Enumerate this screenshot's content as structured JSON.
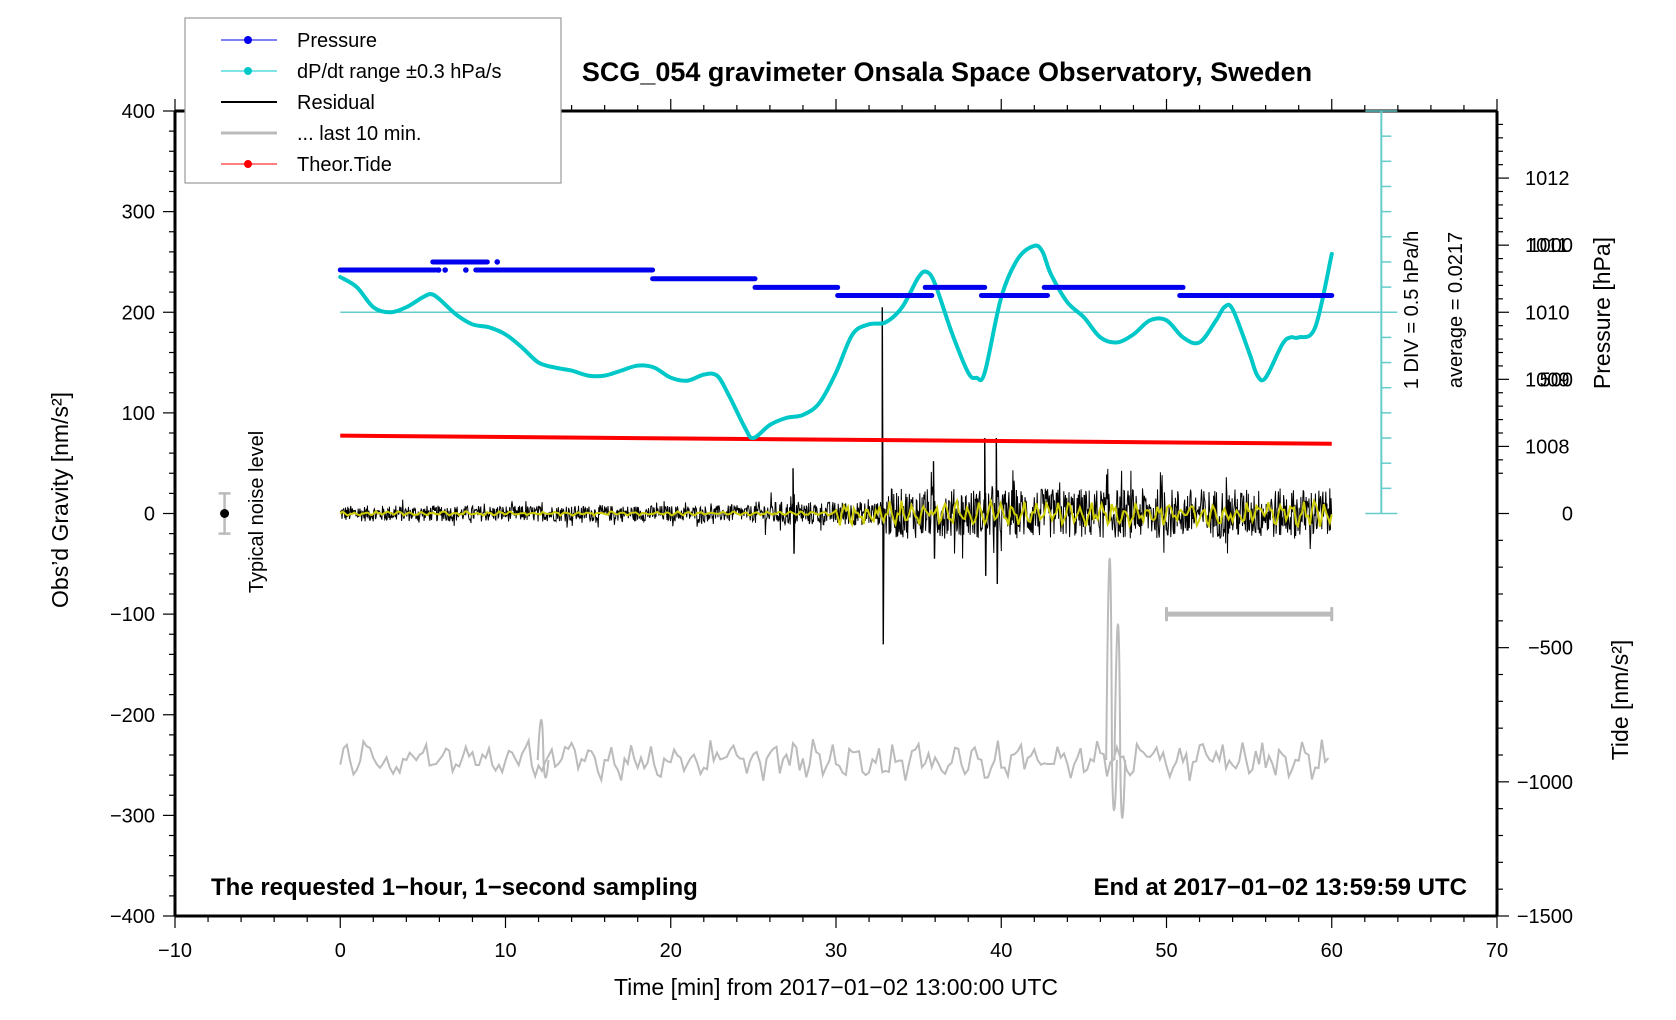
{
  "chart_data": {
    "type": "line",
    "title": "SCG_054 gravimeter Onsala Space Observatory, Sweden",
    "xlabel": "Time [min] from 2017−01−02 13:00:00 UTC",
    "ylabel_left": "Obs’d Gravity [nm/s²]",
    "ylabel_right_top": "Pressure [hPa]",
    "ylabel_right_bottom": "Tide [nm/s²]",
    "xlim": [
      -10,
      70
    ],
    "ylim_left": [
      -400,
      400
    ],
    "grid": false,
    "legend_position": "top-left",
    "x_ticks": [
      -10,
      0,
      10,
      20,
      30,
      40,
      50,
      60,
      70
    ],
    "x_tick_labels": [
      "−10",
      "0",
      "10",
      "20",
      "30",
      "40",
      "50",
      "60",
      "70"
    ],
    "y_left_ticks": [
      400,
      300,
      200,
      100,
      0,
      -100,
      -200,
      -300,
      -400
    ],
    "y_left_tick_labels": [
      "400",
      "300",
      "200",
      "100",
      "0",
      "−100",
      "−200",
      "−300",
      "−400"
    ],
    "y_pressure_ticks": [
      1012,
      1011,
      1010,
      1009,
      1008
    ],
    "y_pressure_tick_labels": [
      "1012",
      "1011",
      "1010",
      "1009",
      "1008"
    ],
    "y_pressure_mapping": {
      "value_at_left_200": 1010,
      "hpa_per_left_unit": 0.015
    },
    "y_tide_ticks": [
      1000,
      500,
      0,
      -500,
      -1000,
      -1500
    ],
    "y_tide_tick_labels": [
      "1000",
      "500",
      "0",
      "−500",
      "−1000",
      "−1500"
    ],
    "y_tide_mapping": {
      "value_at_left_minus400": -1500,
      "nm_per_left_unit": 3.75
    },
    "legend": [
      {
        "label": "Pressure",
        "color": "#0000ee",
        "style": "line-dot"
      },
      {
        "label": "dP/dt range ±0.3 hPa/s",
        "color": "#00c8c8",
        "style": "line-dot"
      },
      {
        "label": "Residual",
        "color": "#000000",
        "style": "line"
      },
      {
        "label": "... last 10 min.",
        "color": "#bbbbbb",
        "style": "thick-line"
      },
      {
        "label": "Theor.Tide",
        "color": "#ff0000",
        "style": "line-dot"
      }
    ],
    "series": [
      {
        "name": "Pressure",
        "color": "#0000ee",
        "units": "hPa",
        "segments": [
          {
            "x": [
              0,
              5.8
            ],
            "y": 1010.63
          },
          {
            "x": [
              5.6,
              8.9
            ],
            "y": 1010.75
          },
          {
            "x": [
              8.2,
              18.9
            ],
            "y": 1010.63
          },
          {
            "x": [
              18.9,
              25.1
            ],
            "y": 1010.5
          },
          {
            "x": [
              25.1,
              30.1
            ],
            "y": 1010.37
          },
          {
            "x": [
              30.1,
              35.8
            ],
            "y": 1010.25
          },
          {
            "x": [
              35.4,
              39.0
            ],
            "y": 1010.37
          },
          {
            "x": [
              38.8,
              42.8
            ],
            "y": 1010.25
          },
          {
            "x": [
              42.6,
              51.0
            ],
            "y": 1010.37
          },
          {
            "x": [
              50.8,
              60.0
            ],
            "y": 1010.25
          }
        ]
      },
      {
        "name": "dP/dt",
        "color": "#00c8c8",
        "units": "left-axis nm/s² scale (200 = average)",
        "x": [
          0,
          1,
          2,
          3,
          4,
          5,
          5.5,
          6,
          7,
          8,
          9,
          10,
          11,
          12,
          13,
          14,
          15,
          16,
          17,
          18,
          19,
          20,
          21,
          22,
          22.8,
          23.5,
          24.5,
          25,
          26,
          27,
          28,
          29,
          30,
          31,
          32,
          33,
          34,
          35,
          35.5,
          36,
          37,
          38,
          38.5,
          39,
          40,
          41,
          42,
          42.5,
          43,
          44,
          45,
          46,
          47,
          48,
          49,
          50,
          51,
          52,
          53,
          53.5,
          54,
          55,
          55.5,
          56,
          57,
          57.5,
          58,
          59,
          60
        ],
        "y": [
          235,
          225,
          205,
          200,
          205,
          215,
          218,
          213,
          198,
          188,
          185,
          178,
          165,
          150,
          145,
          142,
          137,
          137,
          142,
          147,
          145,
          135,
          132,
          138,
          137,
          118,
          85,
          75,
          88,
          95,
          98,
          110,
          140,
          178,
          188,
          190,
          205,
          235,
          240,
          228,
          180,
          140,
          135,
          140,
          215,
          253,
          266,
          260,
          238,
          210,
          195,
          175,
          170,
          178,
          192,
          192,
          175,
          170,
          192,
          205,
          203,
          160,
          137,
          135,
          168,
          175,
          175,
          185,
          258
        ]
      },
      {
        "name": "Residual",
        "color": "#000000",
        "units": "nm/s²",
        "baseline": 0,
        "noise_amplitude": [
          {
            "x": [
              0,
              25
            ],
            "amp": 8
          },
          {
            "x": [
              25,
              33
            ],
            "amp": 12
          },
          {
            "x": [
              33,
              60
            ],
            "amp": 25
          }
        ],
        "spikes": [
          {
            "x": 32.8,
            "y_max": 205,
            "y_min": -130
          },
          {
            "x": 35.9,
            "y_max": 52,
            "y_min": -45
          },
          {
            "x": 39.0,
            "y_max": 75,
            "y_min": -62
          },
          {
            "x": 39.7,
            "y_max": 75,
            "y_min": -70
          },
          {
            "x": 27.4,
            "y_max": 45,
            "y_min": -40
          }
        ]
      },
      {
        "name": "Residual (smoothed, yellow)",
        "color": "#cccc00",
        "units": "nm/s²",
        "baseline": 0,
        "amplitude": [
          {
            "x": [
              0,
              30
            ],
            "amp": 2
          },
          {
            "x": [
              30,
              60
            ],
            "amp": 12
          }
        ]
      },
      {
        "name": "Theor.Tide",
        "color": "#ff0000",
        "units": "nm/s² (tide axis)",
        "x": [
          0,
          60
        ],
        "y": [
          290,
          260
        ]
      },
      {
        "name": "... last 10 min.",
        "color": "#bbbbbb",
        "units": "left-axis scale",
        "baseline": -245,
        "noise_amplitude": 15,
        "spikes": [
          {
            "x": 12.2,
            "y_max": -205,
            "y_min": -280
          },
          {
            "x": 46.6,
            "y_max": -45,
            "y_min": -345
          },
          {
            "x": 47.1,
            "y_max": -110,
            "y_min": -360
          }
        ]
      }
    ],
    "annotations": [
      {
        "text": "The requested 1−hour, 1−second sampling",
        "position": "bottom-left"
      },
      {
        "text": "End at 2017−01−02 13:59:59 UTC",
        "position": "bottom-right"
      },
      {
        "text": "1 DIV = 0.5 hPa/h",
        "position": "right, vertical"
      },
      {
        "text": "average = 0.0217",
        "position": "right, vertical"
      },
      {
        "text": "Typical noise level",
        "position": "left, vertical"
      }
    ],
    "noise_level_marker": {
      "x": -7,
      "y": 0,
      "err": 20
    },
    "last10min_bar": {
      "x": [
        50,
        60
      ],
      "y": -100
    },
    "dpdt_scale_bar": {
      "x": 63,
      "y_range": [
        0,
        400
      ],
      "center": 200,
      "div": 25
    }
  }
}
